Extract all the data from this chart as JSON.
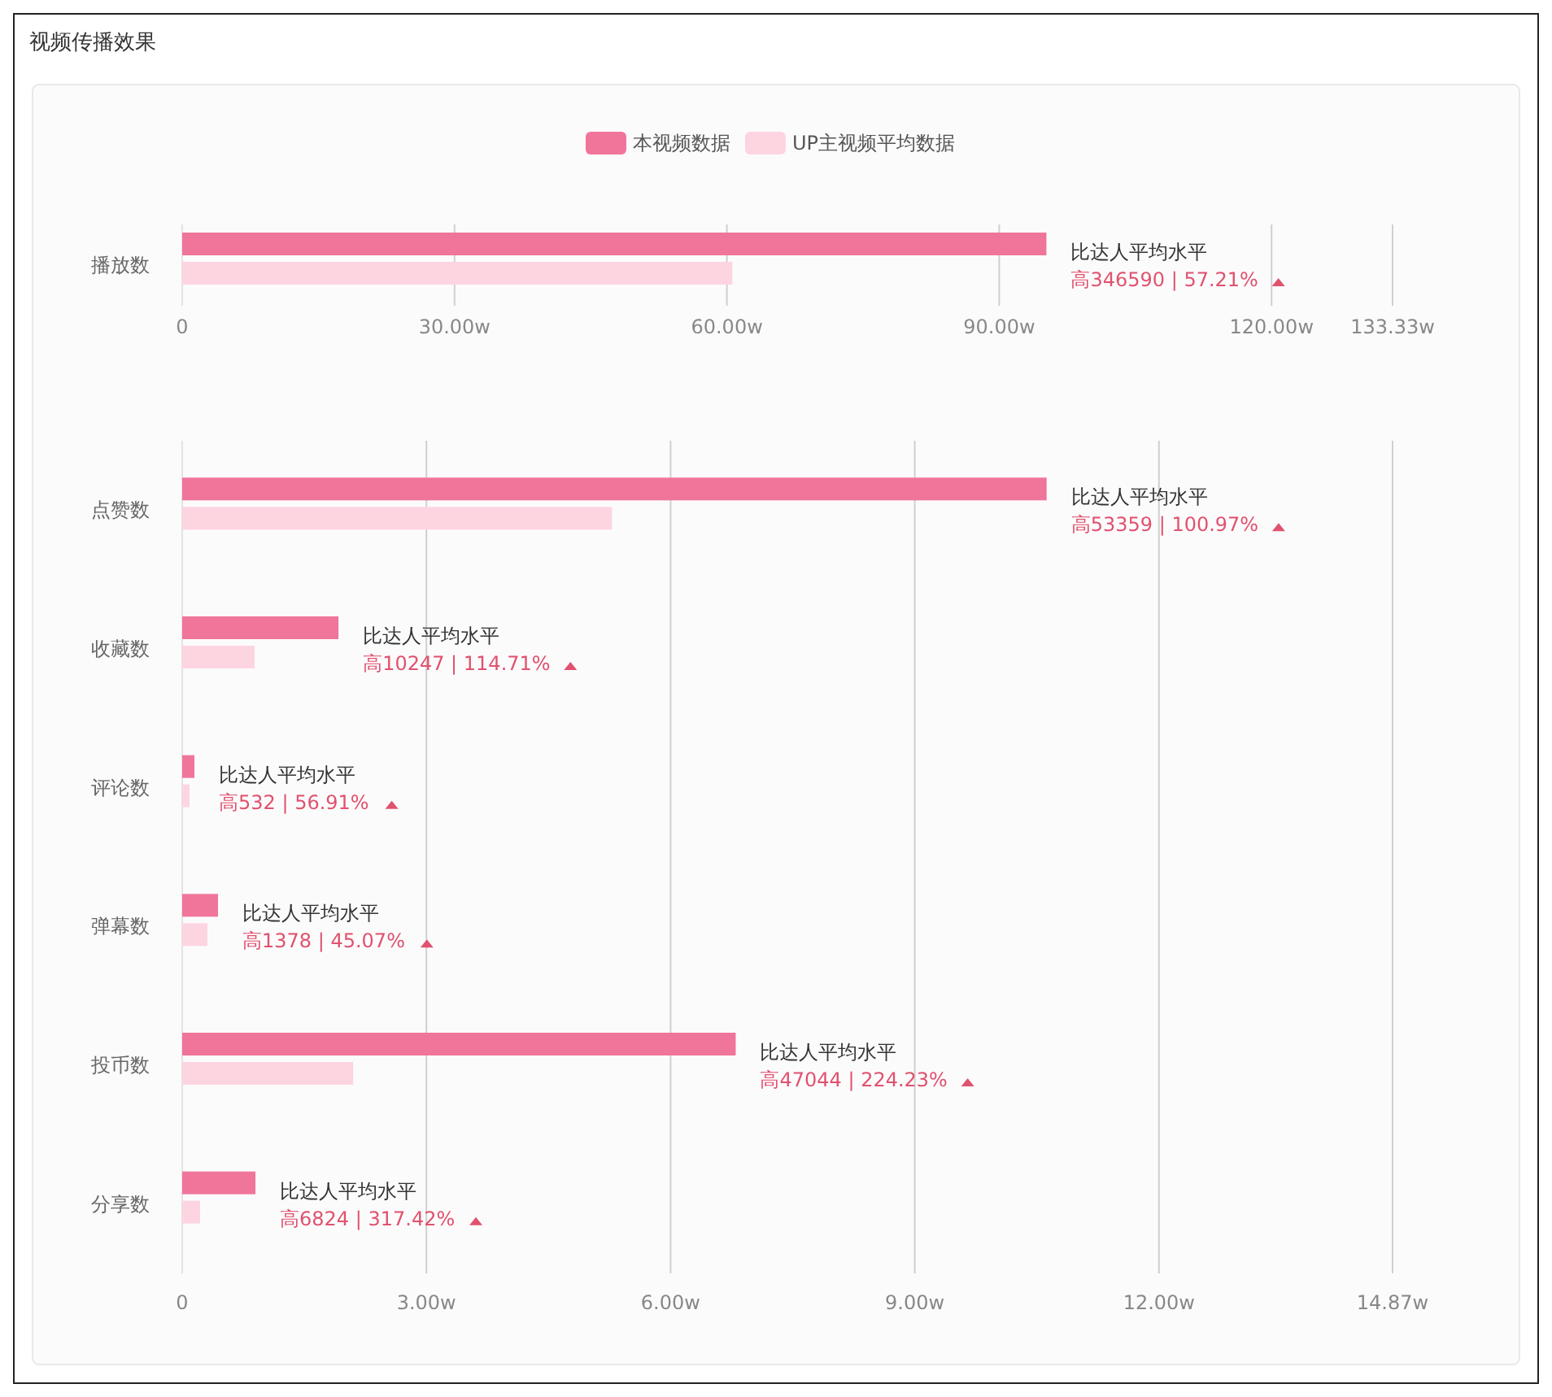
{
  "chart_data": [
    {
      "type": "bar",
      "orientation": "horizontal",
      "title": "视频传播效果",
      "legend": "top",
      "grid": "x",
      "categories": [
        "播放数"
      ],
      "series": [
        {
          "name": "本视频数据",
          "color": "#f0759a",
          "values": [
            95.2
          ]
        },
        {
          "name": "UP主视频平均数据",
          "color": "#fdd5e1",
          "values": [
            60.6
          ]
        }
      ],
      "xlim": [
        0,
        133.33
      ],
      "xticks": [
        {
          "value": 0,
          "label": "0"
        },
        {
          "value": 30,
          "label": "30.00w"
        },
        {
          "value": 60,
          "label": "60.00w"
        },
        {
          "value": 90,
          "label": "90.00w"
        },
        {
          "value": 120,
          "label": "120.00w"
        },
        {
          "value": 133.33,
          "label": "133.33w"
        }
      ],
      "annotations": [
        "比达人平均水平",
        "高346590 | 57.21%"
      ]
    },
    {
      "type": "bar",
      "orientation": "horizontal",
      "grid": "x",
      "categories": [
        "点赞数",
        "收藏数",
        "评论数",
        "弹幕数",
        "投币数",
        "分享数"
      ],
      "series": [
        {
          "color": "#f0759a",
          "values": [
            10.62,
            1.92,
            0.15,
            0.44,
            6.8,
            0.9
          ]
        },
        {
          "color": "#fdd5e1",
          "values": [
            5.28,
            0.89,
            0.09,
            0.31,
            2.1,
            0.22
          ]
        }
      ],
      "xlim": [
        0,
        14.87
      ],
      "xticks": [
        {
          "value": 0,
          "label": "0"
        },
        {
          "value": 3,
          "label": "3.00w"
        },
        {
          "value": 6,
          "label": "6.00w"
        },
        {
          "value": 9,
          "label": "9.00w"
        },
        {
          "value": 12,
          "label": "12.00w"
        },
        {
          "value": 14.87,
          "label": "14.87w"
        }
      ],
      "annotations": [
        "比达人平均水平",
        "高53359 | 100.97%",
        "比达人平均水平",
        "高10247 | 114.71%",
        "比达人平均水平",
        "高532 | 56.91%",
        "比达人平均水平",
        "高1378 | 45.07%",
        "比达人平均水平",
        "高47044 | 224.23%",
        "比达人平均水平",
        "高6824 | 317.42%"
      ]
    }
  ]
}
